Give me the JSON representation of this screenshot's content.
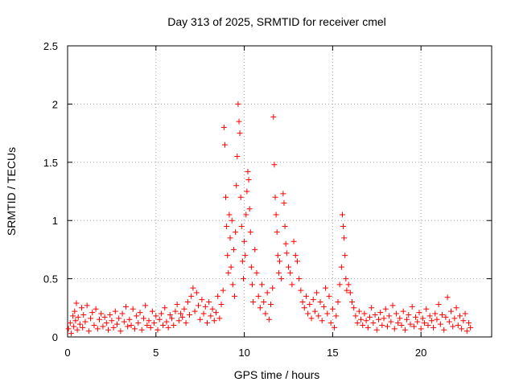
{
  "chart_data": {
    "type": "scatter",
    "title": "Day 313 of 2025, SRMTID for receiver cmel",
    "xlabel": "GPS time / hours",
    "ylabel": "SRMTID / TECUs",
    "xlim": [
      0,
      24
    ],
    "ylim": [
      0,
      2.5
    ],
    "x_ticks": [
      "0",
      "5",
      "10",
      "15",
      "20"
    ],
    "y_ticks": [
      "0",
      "0.5",
      "1",
      "1.5",
      "2",
      "2.5"
    ],
    "grid": true,
    "marker": "+",
    "color": "#ff0000",
    "series": [
      {
        "name": "SRMTID",
        "points": [
          [
            0.05,
            0.07
          ],
          [
            0.15,
            0.12
          ],
          [
            0.2,
            0.03
          ],
          [
            0.3,
            0.18
          ],
          [
            0.35,
            0.09
          ],
          [
            0.4,
            0.22
          ],
          [
            0.45,
            0.14
          ],
          [
            0.5,
            0.29
          ],
          [
            0.55,
            0.06
          ],
          [
            0.6,
            0.17
          ],
          [
            0.7,
            0.11
          ],
          [
            0.8,
            0.25
          ],
          [
            0.85,
            0.08
          ],
          [
            0.9,
            0.19
          ],
          [
            1.0,
            0.13
          ],
          [
            1.1,
            0.27
          ],
          [
            1.2,
            0.05
          ],
          [
            1.3,
            0.16
          ],
          [
            1.4,
            0.21
          ],
          [
            1.5,
            0.1
          ],
          [
            1.6,
            0.24
          ],
          [
            1.7,
            0.07
          ],
          [
            1.8,
            0.15
          ],
          [
            1.9,
            0.2
          ],
          [
            2.0,
            0.09
          ],
          [
            2.1,
            0.17
          ],
          [
            2.2,
            0.12
          ],
          [
            2.3,
            0.06
          ],
          [
            2.4,
            0.19
          ],
          [
            2.5,
            0.14
          ],
          [
            2.6,
            0.08
          ],
          [
            2.7,
            0.22
          ],
          [
            2.8,
            0.11
          ],
          [
            2.9,
            0.16
          ],
          [
            3.0,
            0.05
          ],
          [
            3.1,
            0.2
          ],
          [
            3.2,
            0.13
          ],
          [
            3.3,
            0.26
          ],
          [
            3.4,
            0.09
          ],
          [
            3.5,
            0.15
          ],
          [
            3.6,
            0.1
          ],
          [
            3.7,
            0.24
          ],
          [
            3.8,
            0.07
          ],
          [
            3.9,
            0.18
          ],
          [
            4.0,
            0.12
          ],
          [
            4.1,
            0.21
          ],
          [
            4.2,
            0.06
          ],
          [
            4.3,
            0.16
          ],
          [
            4.4,
            0.27
          ],
          [
            4.5,
            0.1
          ],
          [
            4.6,
            0.14
          ],
          [
            4.7,
            0.08
          ],
          [
            4.8,
            0.22
          ],
          [
            4.9,
            0.12
          ],
          [
            5.0,
            0.18
          ],
          [
            5.1,
            0.06
          ],
          [
            5.2,
            0.15
          ],
          [
            5.3,
            0.2
          ],
          [
            5.4,
            0.1
          ],
          [
            5.5,
            0.25
          ],
          [
            5.6,
            0.13
          ],
          [
            5.7,
            0.08
          ],
          [
            5.8,
            0.19
          ],
          [
            5.9,
            0.16
          ],
          [
            6.0,
            0.1
          ],
          [
            6.1,
            0.22
          ],
          [
            6.2,
            0.28
          ],
          [
            6.3,
            0.14
          ],
          [
            6.4,
            0.2
          ],
          [
            6.5,
            0.17
          ],
          [
            6.6,
            0.24
          ],
          [
            6.7,
            0.12
          ],
          [
            6.8,
            0.3
          ],
          [
            6.9,
            0.19
          ],
          [
            7.0,
            0.35
          ],
          [
            7.1,
            0.42
          ],
          [
            7.2,
            0.22
          ],
          [
            7.3,
            0.38
          ],
          [
            7.4,
            0.27
          ],
          [
            7.5,
            0.15
          ],
          [
            7.6,
            0.32
          ],
          [
            7.7,
            0.2
          ],
          [
            7.8,
            0.26
          ],
          [
            7.9,
            0.12
          ],
          [
            8.0,
            0.3
          ],
          [
            8.1,
            0.18
          ],
          [
            8.2,
            0.24
          ],
          [
            8.3,
            0.14
          ],
          [
            8.4,
            0.21
          ],
          [
            8.5,
            0.35
          ],
          [
            8.6,
            0.16
          ],
          [
            8.7,
            0.28
          ],
          [
            8.8,
            0.4
          ],
          [
            8.85,
            1.8
          ],
          [
            8.9,
            1.65
          ],
          [
            8.95,
            1.2
          ],
          [
            9.0,
            0.95
          ],
          [
            9.05,
            0.7
          ],
          [
            9.1,
            0.55
          ],
          [
            9.15,
            1.05
          ],
          [
            9.2,
            0.85
          ],
          [
            9.25,
            0.6
          ],
          [
            9.3,
            1.0
          ],
          [
            9.35,
            0.45
          ],
          [
            9.4,
            0.75
          ],
          [
            9.45,
            0.35
          ],
          [
            9.5,
            0.9
          ],
          [
            9.55,
            1.3
          ],
          [
            9.6,
            1.55
          ],
          [
            9.65,
            2.0
          ],
          [
            9.7,
            1.85
          ],
          [
            9.75,
            1.75
          ],
          [
            9.8,
            1.2
          ],
          [
            9.85,
            0.95
          ],
          [
            9.9,
            0.65
          ],
          [
            9.95,
            0.5
          ],
          [
            10.0,
            0.82
          ],
          [
            10.05,
            0.7
          ],
          [
            10.1,
            1.05
          ],
          [
            10.15,
            1.25
          ],
          [
            10.2,
            1.42
          ],
          [
            10.25,
            1.35
          ],
          [
            10.3,
            1.1
          ],
          [
            10.35,
            0.9
          ],
          [
            10.4,
            0.6
          ],
          [
            10.45,
            0.45
          ],
          [
            10.5,
            0.3
          ],
          [
            10.6,
            0.75
          ],
          [
            10.7,
            0.55
          ],
          [
            10.8,
            0.35
          ],
          [
            10.9,
            0.25
          ],
          [
            11.0,
            0.45
          ],
          [
            11.1,
            0.3
          ],
          [
            11.2,
            0.2
          ],
          [
            11.3,
            0.38
          ],
          [
            11.4,
            0.15
          ],
          [
            11.5,
            0.28
          ],
          [
            11.6,
            0.42
          ],
          [
            11.65,
            1.89
          ],
          [
            11.7,
            1.48
          ],
          [
            11.75,
            1.2
          ],
          [
            11.8,
            1.05
          ],
          [
            11.85,
            0.9
          ],
          [
            11.9,
            0.7
          ],
          [
            11.95,
            0.55
          ],
          [
            12.0,
            0.65
          ],
          [
            12.1,
            0.5
          ],
          [
            12.2,
            1.23
          ],
          [
            12.25,
            1.15
          ],
          [
            12.3,
            0.95
          ],
          [
            12.35,
            0.8
          ],
          [
            12.4,
            0.72
          ],
          [
            12.5,
            0.6
          ],
          [
            12.6,
            0.55
          ],
          [
            12.7,
            0.45
          ],
          [
            12.8,
            0.82
          ],
          [
            12.9,
            0.7
          ],
          [
            13.0,
            0.65
          ],
          [
            13.1,
            0.5
          ],
          [
            13.2,
            0.4
          ],
          [
            13.3,
            0.3
          ],
          [
            13.4,
            0.25
          ],
          [
            13.5,
            0.35
          ],
          [
            13.6,
            0.2
          ],
          [
            13.7,
            0.28
          ],
          [
            13.8,
            0.16
          ],
          [
            13.9,
            0.32
          ],
          [
            14.0,
            0.22
          ],
          [
            14.1,
            0.38
          ],
          [
            14.2,
            0.18
          ],
          [
            14.3,
            0.3
          ],
          [
            14.4,
            0.14
          ],
          [
            14.5,
            0.26
          ],
          [
            14.6,
            0.42
          ],
          [
            14.7,
            0.2
          ],
          [
            14.8,
            0.35
          ],
          [
            14.9,
            0.12
          ],
          [
            15.0,
            0.24
          ],
          [
            15.1,
            0.08
          ],
          [
            15.2,
            0.18
          ],
          [
            15.3,
            0.3
          ],
          [
            15.4,
            0.45
          ],
          [
            15.5,
            0.6
          ],
          [
            15.55,
            1.05
          ],
          [
            15.6,
            0.95
          ],
          [
            15.65,
            0.85
          ],
          [
            15.7,
            0.7
          ],
          [
            15.75,
            0.5
          ],
          [
            15.8,
            0.4
          ],
          [
            15.9,
            0.45
          ],
          [
            16.0,
            0.38
          ],
          [
            16.1,
            0.3
          ],
          [
            16.2,
            0.25
          ],
          [
            16.3,
            0.18
          ],
          [
            16.4,
            0.12
          ],
          [
            16.5,
            0.22
          ],
          [
            16.6,
            0.15
          ],
          [
            16.7,
            0.1
          ],
          [
            16.8,
            0.2
          ],
          [
            16.9,
            0.14
          ],
          [
            17.0,
            0.08
          ],
          [
            17.1,
            0.17
          ],
          [
            17.2,
            0.25
          ],
          [
            17.3,
            0.12
          ],
          [
            17.4,
            0.19
          ],
          [
            17.5,
            0.06
          ],
          [
            17.6,
            0.15
          ],
          [
            17.7,
            0.21
          ],
          [
            17.8,
            0.1
          ],
          [
            17.9,
            0.16
          ],
          [
            18.0,
            0.24
          ],
          [
            18.1,
            0.09
          ],
          [
            18.2,
            0.18
          ],
          [
            18.3,
            0.13
          ],
          [
            18.4,
            0.27
          ],
          [
            18.5,
            0.07
          ],
          [
            18.6,
            0.2
          ],
          [
            18.7,
            0.12
          ],
          [
            18.8,
            0.16
          ],
          [
            18.9,
            0.1
          ],
          [
            19.0,
            0.22
          ],
          [
            19.1,
            0.06
          ],
          [
            19.2,
            0.15
          ],
          [
            19.3,
            0.19
          ],
          [
            19.4,
            0.11
          ],
          [
            19.5,
            0.26
          ],
          [
            19.6,
            0.09
          ],
          [
            19.7,
            0.17
          ],
          [
            19.8,
            0.13
          ],
          [
            19.9,
            0.21
          ],
          [
            20.0,
            0.07
          ],
          [
            20.1,
            0.16
          ],
          [
            20.2,
            0.12
          ],
          [
            20.3,
            0.24
          ],
          [
            20.4,
            0.1
          ],
          [
            20.5,
            0.18
          ],
          [
            20.6,
            0.14
          ],
          [
            20.7,
            0.08
          ],
          [
            20.8,
            0.2
          ],
          [
            20.9,
            0.15
          ],
          [
            21.0,
            0.28
          ],
          [
            21.1,
            0.11
          ],
          [
            21.2,
            0.19
          ],
          [
            21.3,
            0.06
          ],
          [
            21.4,
            0.17
          ],
          [
            21.5,
            0.34
          ],
          [
            21.6,
            0.13
          ],
          [
            21.7,
            0.22
          ],
          [
            21.8,
            0.09
          ],
          [
            21.9,
            0.16
          ],
          [
            22.0,
            0.25
          ],
          [
            22.1,
            0.1
          ],
          [
            22.2,
            0.18
          ],
          [
            22.3,
            0.07
          ],
          [
            22.4,
            0.14
          ],
          [
            22.5,
            0.2
          ],
          [
            22.6,
            0.05
          ],
          [
            22.7,
            0.12
          ],
          [
            22.8,
            0.08
          ]
        ]
      }
    ]
  }
}
